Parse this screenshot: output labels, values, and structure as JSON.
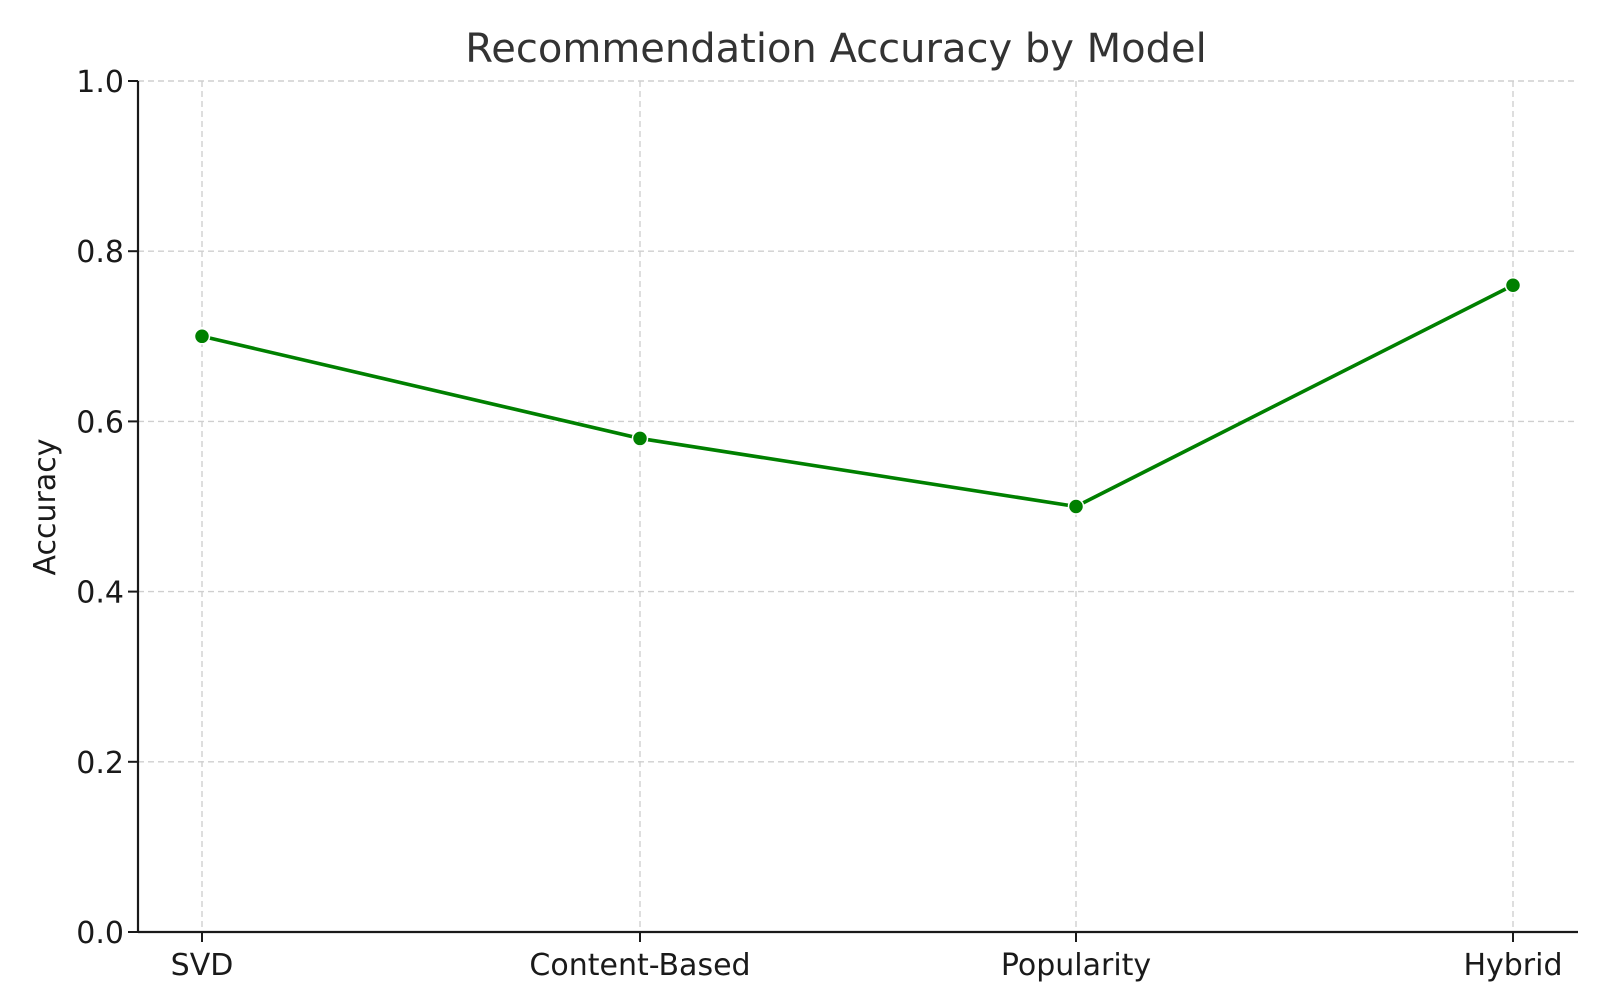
{
  "chart_data": {
    "type": "line",
    "title": "Recommendation Accuracy by Model",
    "xlabel": "",
    "ylabel": "Accuracy",
    "categories": [
      "SVD",
      "Content-Based",
      "Popularity",
      "Hybrid"
    ],
    "series": [
      {
        "values": [
          0.7,
          0.58,
          0.5,
          0.76
        ],
        "color": "#008000",
        "marker": "circle"
      }
    ],
    "ylim": [
      0.0,
      1.0
    ],
    "yticks": [
      "0.0",
      "0.2",
      "0.4",
      "0.6",
      "0.8",
      "1.0"
    ],
    "grid": true,
    "grid_style": "dashed"
  }
}
